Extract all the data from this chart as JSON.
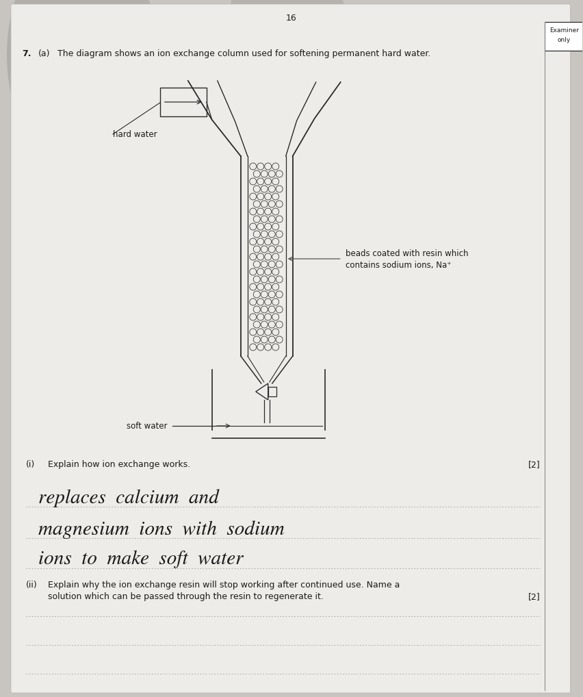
{
  "page_number": "16",
  "examiner_only_text": [
    "Examiner",
    "only"
  ],
  "question_number": "7.",
  "question_part": "(a)",
  "question_text": "The diagram shows an ion exchange column used for softening permanent hard water.",
  "hard_water_label": "hard water",
  "beads_label_line1": "beads coated with resin which",
  "beads_label_line2": "contains sodium ions, Na⁺",
  "soft_water_label": "soft water",
  "part_i_label": "(i)",
  "part_i_text": "Explain how ion exchange works.",
  "part_i_marks": "[2]",
  "part_i_answer_line1": "replaces  calcium  and",
  "part_i_answer_line2": "magnesium  ions  with  sodium",
  "part_i_answer_line3": "ions  to  make  soft  water",
  "part_ii_label": "(ii)",
  "part_ii_text_line1": "Explain why the ion exchange resin will stop working after continued use. Name a",
  "part_ii_text_line2": "solution which can be passed through the resin to regenerate it.",
  "part_ii_marks": "[2]",
  "bg_color": "#c8c4bf",
  "paper_color": "#eeece8",
  "text_color": "#1a1a1a",
  "line_color": "#555555",
  "diagram_color": "#2a2a2a",
  "handwriting_color": "#1a1a1a",
  "dotted_line_color": "#999999",
  "shadow_color": "#a09c98"
}
